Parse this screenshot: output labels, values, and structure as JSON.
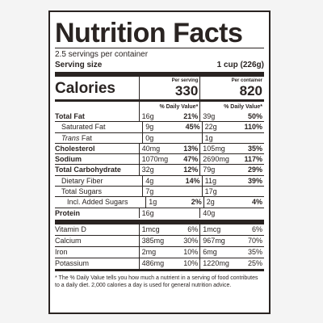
{
  "label": {
    "title": "Nutrition Facts",
    "servings_per_container": "2.5 servings per container",
    "serving_size_label": "Serving size",
    "serving_size_value": "1 cup (226g)",
    "calories_label": "Calories",
    "per_serving_header": "Per serving",
    "per_container_header": "Per container",
    "calories_per_serving": "330",
    "calories_per_container": "820",
    "dv_header": "% Daily Value*"
  },
  "nutrients": [
    {
      "name": "Total Fat",
      "ps_amt": "16g",
      "ps_pct": "21%",
      "pc_amt": "39g",
      "pc_pct": "50%"
    },
    {
      "name": "Saturated Fat",
      "ps_amt": "9g",
      "ps_pct": "45%",
      "pc_amt": "22g",
      "pc_pct": "110%"
    },
    {
      "name": "Trans Fat",
      "ps_amt": "0g",
      "ps_pct": "",
      "pc_amt": "1g",
      "pc_pct": ""
    },
    {
      "name": "Cholesterol",
      "ps_amt": "40mg",
      "ps_pct": "13%",
      "pc_amt": "105mg",
      "pc_pct": "35%"
    },
    {
      "name": "Sodium",
      "ps_amt": "1070mg",
      "ps_pct": "47%",
      "pc_amt": "2690mg",
      "pc_pct": "117%"
    },
    {
      "name": "Total Carbohydrate",
      "ps_amt": "32g",
      "ps_pct": "12%",
      "pc_amt": "79g",
      "pc_pct": "29%"
    },
    {
      "name": "Dietary Fiber",
      "ps_amt": "4g",
      "ps_pct": "14%",
      "pc_amt": "11g",
      "pc_pct": "39%"
    },
    {
      "name": "Total Sugars",
      "ps_amt": "7g",
      "ps_pct": "",
      "pc_amt": "17g",
      "pc_pct": ""
    },
    {
      "name": "Incl. Added Sugars",
      "ps_amt": "1g",
      "ps_pct": "2%",
      "pc_amt": "2g",
      "pc_pct": "4%"
    },
    {
      "name": "Protein",
      "ps_amt": "16g",
      "ps_pct": "",
      "pc_amt": "40g",
      "pc_pct": ""
    }
  ],
  "vitamins": [
    {
      "name": "Vitamin D",
      "ps_amt": "1mcg",
      "ps_pct": "6%",
      "pc_amt": "1mcg",
      "pc_pct": "6%"
    },
    {
      "name": "Calcium",
      "ps_amt": "385mg",
      "ps_pct": "30%",
      "pc_amt": "967mg",
      "pc_pct": "70%"
    },
    {
      "name": "Iron",
      "ps_amt": "2mg",
      "ps_pct": "10%",
      "pc_amt": "6mg",
      "pc_pct": "35%"
    },
    {
      "name": "Potassium",
      "ps_amt": "486mg",
      "ps_pct": "10%",
      "pc_amt": "1220mg",
      "pc_pct": "25%"
    }
  ],
  "footnote": "* The % Daily Value tells you how much a nutrient in a serving of food contributes to a daily diet. 2,000 calories a day is used for general nutrition advice."
}
